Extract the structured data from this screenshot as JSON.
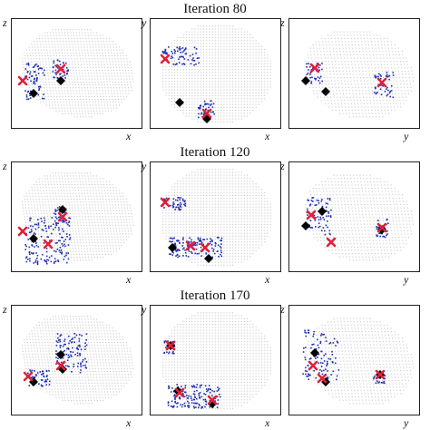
{
  "figure": {
    "rows": [
      {
        "title": "Iteration 80",
        "panels": [
          {
            "vertical_axis": "z",
            "horizontal_axis": "x"
          },
          {
            "vertical_axis": "y",
            "horizontal_axis": "x"
          },
          {
            "vertical_axis": "z",
            "horizontal_axis": "y"
          }
        ]
      },
      {
        "title": "Iteration 120",
        "panels": [
          {
            "vertical_axis": "z",
            "horizontal_axis": "x"
          },
          {
            "vertical_axis": "y",
            "horizontal_axis": "x"
          },
          {
            "vertical_axis": "z",
            "horizontal_axis": "y"
          }
        ]
      },
      {
        "title": "Iteration 170",
        "panels": [
          {
            "vertical_axis": "z",
            "horizontal_axis": "x"
          },
          {
            "vertical_axis": "y",
            "horizontal_axis": "x"
          },
          {
            "vertical_axis": "z",
            "horizontal_axis": "y"
          }
        ]
      }
    ],
    "colors": {
      "background_cloud": "#c8c8c8",
      "selected_points": "#1f2fb4",
      "cross_marker": "#e0203a",
      "diamond_marker": "#000000"
    }
  }
}
